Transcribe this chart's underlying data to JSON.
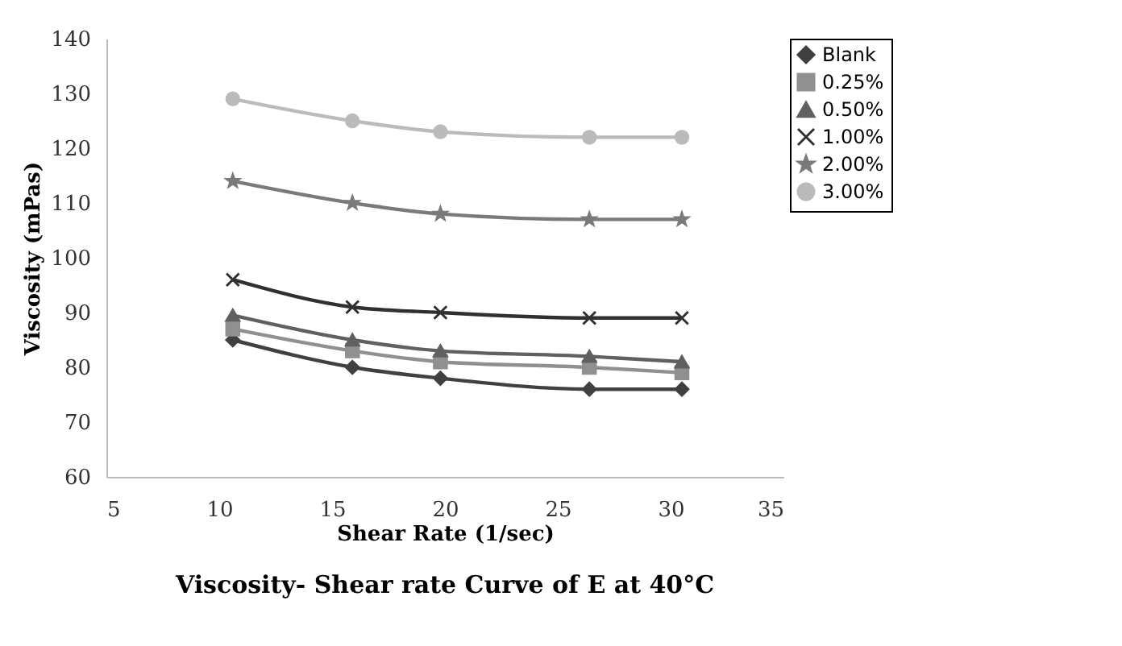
{
  "chart_data": {
    "type": "line",
    "title": "Viscosity- Shear rate Curve of E at 40°C",
    "xlabel": "Shear Rate (1/sec)",
    "ylabel": "Viscosity (mPas)",
    "x": [
      10.6,
      15.9,
      19.8,
      26.4,
      30.5
    ],
    "series": [
      {
        "name": "Blank",
        "color": "#404040",
        "marker": "diamond",
        "values": [
          85,
          80,
          78,
          76,
          76
        ]
      },
      {
        "name": "0.25%",
        "color": "#909090",
        "marker": "square",
        "values": [
          87,
          83,
          81,
          80,
          79
        ]
      },
      {
        "name": "0.50%",
        "color": "#606060",
        "marker": "triangle",
        "values": [
          89.5,
          85,
          83,
          82,
          81
        ]
      },
      {
        "name": "1.00%",
        "color": "#303030",
        "marker": "cross",
        "values": [
          96,
          91,
          90,
          89,
          89
        ]
      },
      {
        "name": "2.00%",
        "color": "#7a7a7a",
        "marker": "star",
        "values": [
          114,
          110,
          108,
          107,
          107
        ]
      },
      {
        "name": "3.00%",
        "color": "#bbbbbb",
        "marker": "circle",
        "values": [
          129,
          125,
          123,
          122,
          122
        ]
      }
    ],
    "xlim": [
      5,
      35
    ],
    "xticks": [
      5,
      10,
      15,
      20,
      25,
      30,
      35
    ],
    "ylim": [
      60,
      140
    ],
    "yticks": [
      60,
      70,
      80,
      90,
      100,
      110,
      120,
      130,
      140
    ],
    "grid": false,
    "legend": "right",
    "line_style": "solid"
  }
}
